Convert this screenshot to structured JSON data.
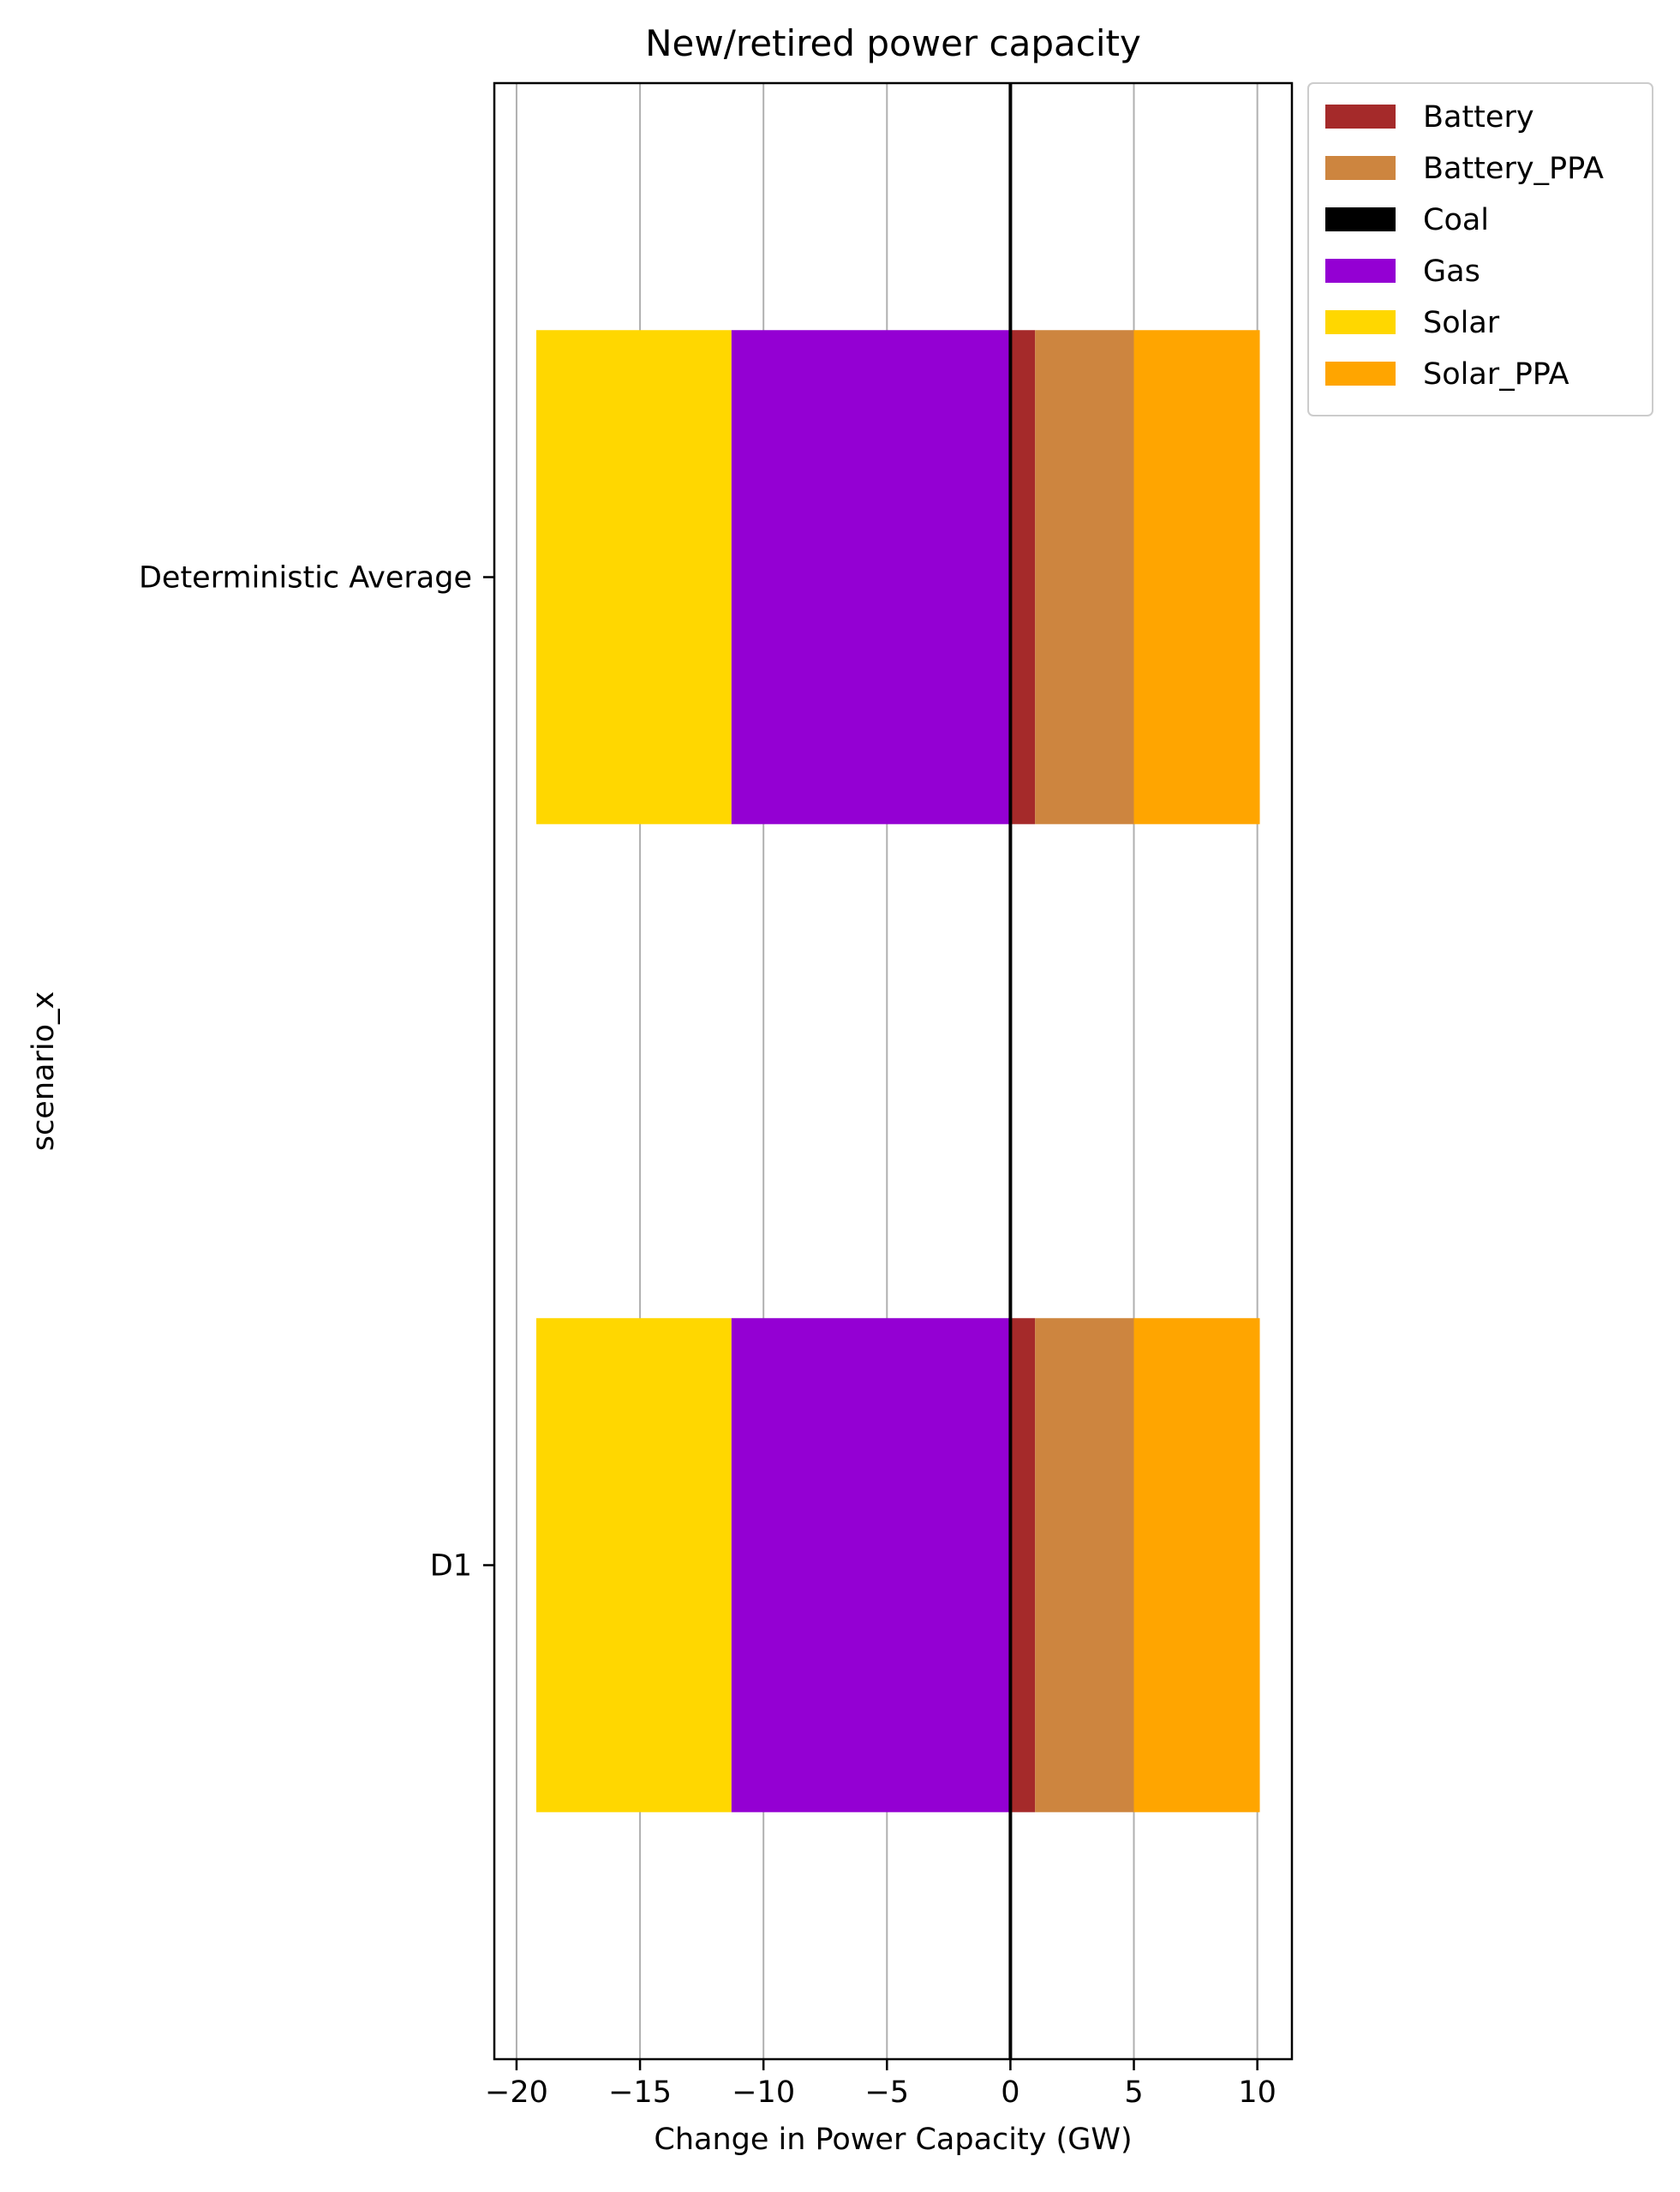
{
  "chart_data": {
    "type": "bar",
    "orientation": "horizontal",
    "stacked": true,
    "title": "New/retired power capacity",
    "xlabel": "Change in Power Capacity (GW)",
    "ylabel": "scenario_x",
    "xlim": [
      -20.9,
      11.4
    ],
    "xticks": [
      -20,
      -15,
      -10,
      -5,
      0,
      5,
      10
    ],
    "xtick_labels": [
      "−20",
      "−15",
      "−10",
      "−5",
      "0",
      "5",
      "10"
    ],
    "grid": "vertical",
    "legend_position": "outside-top-right",
    "zero_line": true,
    "categories": [
      "Deterministic Average",
      "D1"
    ],
    "series": [
      {
        "name": "Battery",
        "color": "#a52a2a",
        "values": [
          1.0,
          1.0
        ]
      },
      {
        "name": "Battery_PPA",
        "color": "#cd853f",
        "values": [
          4.0,
          4.0
        ]
      },
      {
        "name": "Coal",
        "color": "#000000",
        "values": [
          0,
          0
        ]
      },
      {
        "name": "Gas",
        "color": "#9400d3",
        "values": [
          -11.3,
          -11.3
        ]
      },
      {
        "name": "Solar",
        "color": "#ffd700",
        "values": [
          -7.9,
          -7.9
        ]
      },
      {
        "name": "Solar_PPA",
        "color": "#ffa500",
        "values": [
          5.1,
          5.1
        ]
      }
    ]
  }
}
